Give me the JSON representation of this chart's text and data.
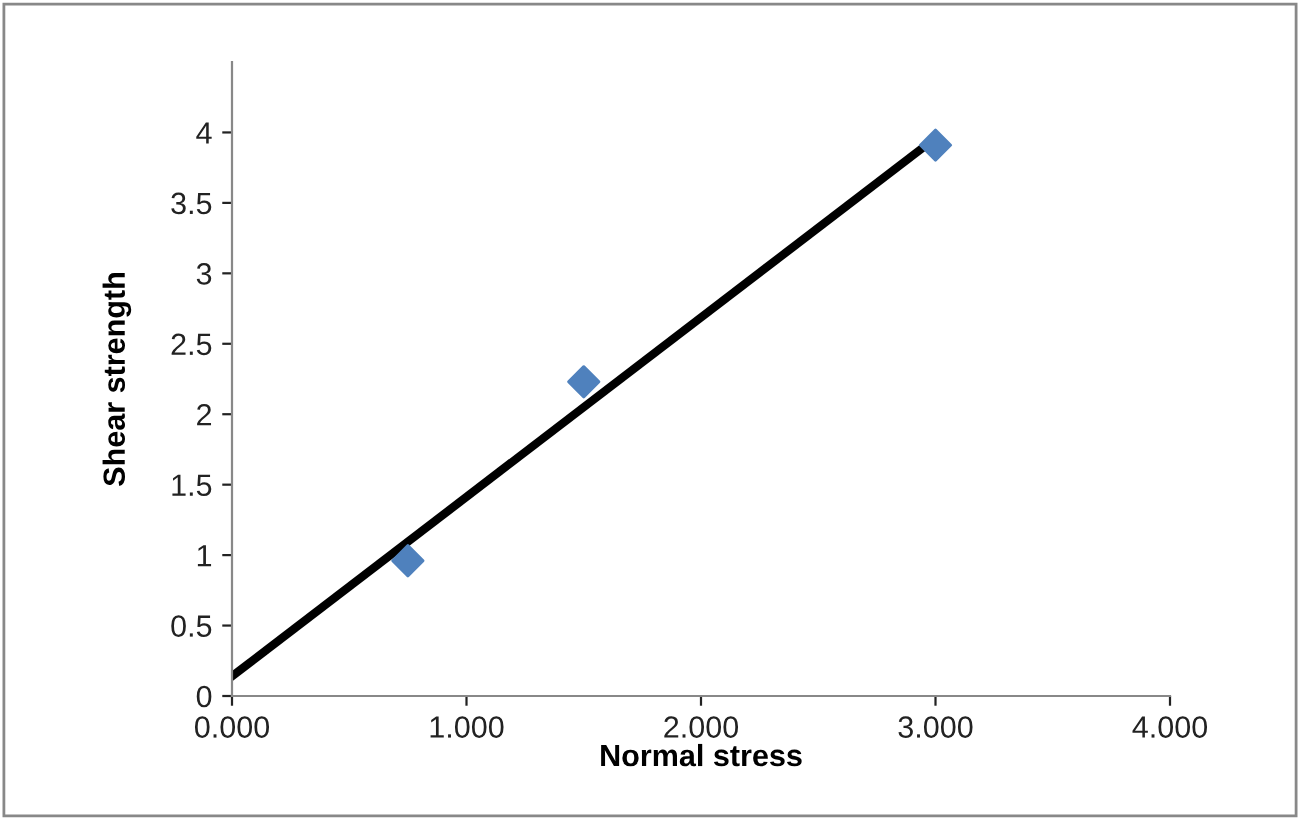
{
  "chart_data": {
    "type": "scatter",
    "xlabel": "Normal stress",
    "ylabel": "Shear strength",
    "xlim": [
      0,
      4
    ],
    "ylim": [
      0,
      4.5
    ],
    "xticks": [
      {
        "value": 0,
        "label": "0.000"
      },
      {
        "value": 1,
        "label": "1.000"
      },
      {
        "value": 2,
        "label": "2.000"
      },
      {
        "value": 3,
        "label": "3.000"
      },
      {
        "value": 4,
        "label": "4.000"
      }
    ],
    "yticks": [
      0,
      0.5,
      1,
      1.5,
      2,
      2.5,
      3,
      3.5,
      4
    ],
    "grid": false,
    "legend": false,
    "marker": "diamond",
    "series": [
      {
        "color": "#4f81bd",
        "x": [
          0.75,
          1.5,
          3.0
        ],
        "values": [
          0.96,
          2.23,
          3.91
        ]
      },
      {
        "type": "line",
        "color": "#000000",
        "x": [
          0,
          3.0
        ],
        "values": [
          0.14,
          3.96
        ],
        "marker": "none",
        "line_style": "solid"
      }
    ]
  }
}
